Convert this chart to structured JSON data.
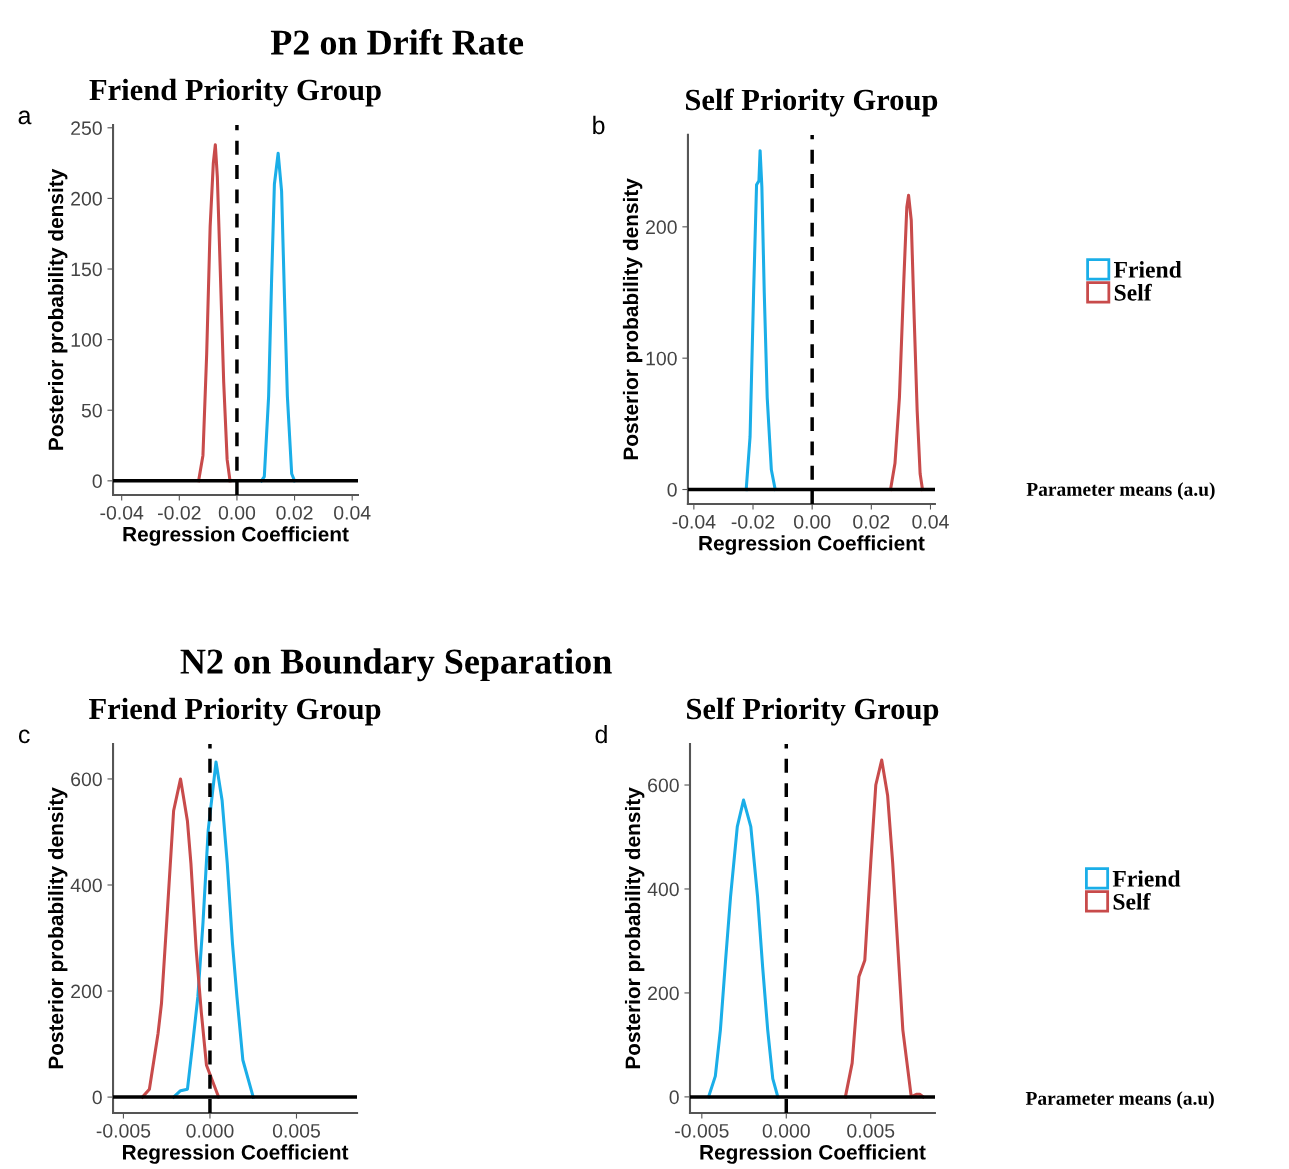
{
  "chart_data": [
    {
      "type": "line",
      "title": "Friend Priority Group",
      "xlabel": "Regression Coefficient",
      "ylabel": "Posterior probability density",
      "annotations": [
        "P2 on Drift Rate",
        "a"
      ],
      "xlim": [
        -0.043,
        0.042
      ],
      "xticks": [
        {
          "value": -0.04,
          "label": "-0.04"
        },
        {
          "value": -0.02,
          "label": "-0.02"
        },
        {
          "value": 0,
          "label": "0.00"
        },
        {
          "value": 0.02,
          "label": "0.02"
        },
        {
          "value": 0.04,
          "label": "0.04"
        }
      ],
      "ylim": [
        -10,
        252
      ],
      "yticks": [
        0,
        50,
        100,
        150,
        200,
        250
      ],
      "grid": false,
      "legend": false,
      "ref_lines": [
        {
          "axis": "x",
          "value": 0,
          "color": "#000000",
          "line_style": "dashed"
        },
        {
          "axis": "y",
          "value": 0,
          "color": "#000000",
          "line_style": "solid"
        }
      ],
      "series": [
        {
          "color": "#1aaee8",
          "x": [
            0.0085,
            0.0095,
            0.011,
            0.012,
            0.013,
            0.0143,
            0.0155,
            0.0165,
            0.0175,
            0.019,
            0.02
          ],
          "values": [
            0,
            3,
            60,
            140,
            210,
            232,
            205,
            130,
            60,
            5,
            0
          ]
        },
        {
          "color": "#c84b4b",
          "x": [
            -0.0133,
            -0.0118,
            -0.0105,
            -0.0093,
            -0.0082,
            -0.0075,
            -0.0068,
            -0.0058,
            -0.0046,
            -0.0034,
            -0.0024
          ],
          "values": [
            0,
            18,
            90,
            180,
            225,
            238,
            215,
            150,
            70,
            15,
            0
          ]
        }
      ]
    },
    {
      "type": "line",
      "title": "Self Priority Group",
      "xlabel": "Regression Coefficient",
      "ylabel": "Posterior probability density",
      "annotations": [
        "Parameter means (a.u)",
        "b"
      ],
      "xlim": [
        -0.042,
        0.0415
      ],
      "xticks": [
        {
          "value": -0.04,
          "label": "-0.04"
        },
        {
          "value": -0.02,
          "label": "-0.02"
        },
        {
          "value": 0,
          "label": "0.00"
        },
        {
          "value": 0.02,
          "label": "0.02"
        },
        {
          "value": 0.04,
          "label": "0.04"
        }
      ],
      "ylim": [
        -11,
        270
      ],
      "yticks": [
        0,
        100,
        200
      ],
      "grid": false,
      "legend": "right",
      "ref_lines": [
        {
          "axis": "x",
          "value": 0,
          "color": "#000000",
          "line_style": "dashed"
        },
        {
          "axis": "y",
          "value": 0,
          "color": "#000000",
          "line_style": "solid"
        }
      ],
      "series": [
        {
          "name": "Friend",
          "color": "#1aaee8",
          "x": [
            -0.0223,
            -0.021,
            -0.0198,
            -0.0188,
            -0.018,
            -0.0176,
            -0.017,
            -0.0162,
            -0.0152,
            -0.0138,
            -0.0125
          ],
          "values": [
            0,
            40,
            150,
            232,
            235,
            258,
            230,
            150,
            70,
            15,
            0
          ]
        },
        {
          "name": "Self",
          "color": "#c84b4b",
          "x": [
            0.0265,
            0.028,
            0.0295,
            0.031,
            0.032,
            0.0326,
            0.0335,
            0.0345,
            0.0355,
            0.0365,
            0.0373
          ],
          "values": [
            0,
            20,
            70,
            160,
            215,
            224,
            205,
            130,
            60,
            12,
            0
          ]
        }
      ]
    },
    {
      "type": "line",
      "title": "Friend Priority Group",
      "xlabel": "Regression Coefficient",
      "ylabel": "Posterior probability density",
      "annotations": [
        "N2 on Boundary Separation",
        "c"
      ],
      "xlim": [
        -0.0056,
        0.0085
      ],
      "xticks": [
        {
          "value": -0.005,
          "label": "-0.005"
        },
        {
          "value": 0,
          "label": "0.000"
        },
        {
          "value": 0.005,
          "label": "0.005"
        }
      ],
      "ylim": [
        -30,
        666
      ],
      "yticks": [
        0,
        200,
        400,
        600
      ],
      "grid": false,
      "legend": false,
      "ref_lines": [
        {
          "axis": "x",
          "value": 0,
          "color": "#000000",
          "line_style": "dashed"
        },
        {
          "axis": "y",
          "value": 0,
          "color": "#000000",
          "line_style": "solid"
        }
      ],
      "series": [
        {
          "color": "#1aaee8",
          "x": [
            -0.0021,
            -0.0017,
            -0.0013,
            -0.001,
            -0.0007,
            -0.0004,
            -0.0001,
            0.00035,
            0.0007,
            0.001,
            0.0013,
            0.00156,
            0.0019,
            0.0025
          ],
          "values": [
            0,
            12,
            15,
            100,
            189,
            330,
            504,
            632,
            560,
            441,
            290,
            189,
            70,
            0
          ]
        },
        {
          "color": "#c84b4b",
          "x": [
            -0.0039,
            -0.0035,
            -0.003,
            -0.0028,
            -0.0025,
            -0.0021,
            -0.0017,
            -0.0013,
            -0.0011,
            -0.0008,
            -0.0005,
            -0.0002,
            0.0005
          ],
          "values": [
            0,
            15,
            120,
            177,
            330,
            540,
            600,
            520,
            441,
            280,
            160,
            60,
            0
          ]
        }
      ]
    },
    {
      "type": "line",
      "title": "Self Priority Group",
      "xlabel": "Regression Coefficient",
      "ylabel": "Posterior probability density",
      "annotations": [
        "Parameter means (a.u)",
        "d"
      ],
      "xlim": [
        -0.0057,
        0.0088
      ],
      "xticks": [
        {
          "value": -0.005,
          "label": "-0.005"
        },
        {
          "value": 0,
          "label": "0.000"
        },
        {
          "value": 0.005,
          "label": "0.005"
        }
      ],
      "ylim": [
        -31,
        679
      ],
      "yticks": [
        0,
        200,
        400,
        600
      ],
      "grid": false,
      "legend": "right",
      "ref_lines": [
        {
          "axis": "x",
          "value": 0,
          "color": "#000000",
          "line_style": "dashed"
        },
        {
          "axis": "y",
          "value": 0,
          "color": "#000000",
          "line_style": "solid"
        }
      ],
      "series": [
        {
          "name": "Friend",
          "color": "#1aaee8",
          "x": [
            -0.0046,
            -0.0042,
            -0.0039,
            -0.0036,
            -0.0033,
            -0.0029,
            -0.00253,
            -0.0021,
            -0.0017,
            -0.0014,
            -0.0011,
            -0.0008,
            -0.0005
          ],
          "values": [
            0,
            40,
            129,
            260,
            385,
            520,
            571,
            520,
            385,
            250,
            129,
            35,
            0
          ]
        },
        {
          "name": "Self",
          "color": "#c84b4b",
          "x": [
            0.0035,
            0.0039,
            0.0043,
            0.00465,
            0.005,
            0.0053,
            0.00565,
            0.006,
            0.0063,
            0.0066,
            0.0069,
            0.0074,
            0.0077,
            0.0079,
            0.0081
          ],
          "values": [
            0,
            65,
            231,
            263,
            450,
            600,
            648,
            580,
            450,
            290,
            129,
            0,
            5,
            5,
            0
          ]
        }
      ]
    }
  ]
}
